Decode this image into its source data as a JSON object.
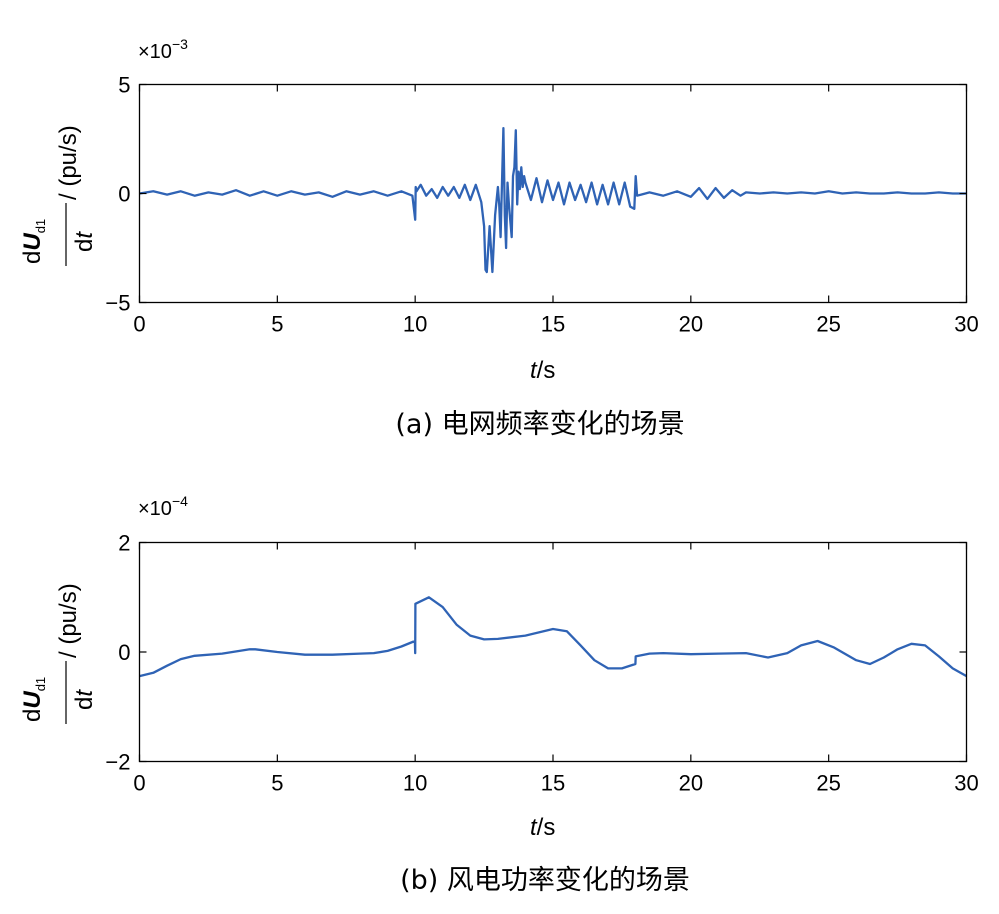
{
  "colors": {
    "series": "#2f63b5",
    "axis": "#000000"
  },
  "chart_data": [
    {
      "type": "line",
      "caption": "(a) 电网频率变化的场景",
      "xlabel_italic": "t",
      "xlabel_unit": "/s",
      "ylabel": {
        "d_top": "d",
        "U": "U",
        "sub": "d1",
        "d_bottom": "d",
        "t": "t",
        "unit": "/ (pu/s)"
      },
      "exponent": {
        "prefix": "×10",
        "power": "−3"
      },
      "xlim": [
        0,
        30
      ],
      "ylim": [
        -5,
        5
      ],
      "xticks": [
        0,
        5,
        10,
        15,
        20,
        25,
        30
      ],
      "xtick_labels": [
        "0",
        "5",
        "10",
        "15",
        "20",
        "25",
        "30"
      ],
      "yticks": [
        -5,
        0,
        5
      ],
      "ytick_labels": [
        "−5",
        "0",
        "5"
      ],
      "series": [
        {
          "values_note": "dUd1/dt ×10^-3",
          "x": [
            0,
            0.5,
            1,
            1.5,
            2,
            2.5,
            3,
            3.5,
            4,
            4.5,
            5,
            5.5,
            6,
            6.5,
            7,
            7.5,
            8,
            8.5,
            9,
            9.5,
            9.9,
            10.0,
            10.02,
            10.05,
            10.2,
            10.4,
            10.6,
            10.8,
            11.0,
            11.2,
            11.4,
            11.6,
            11.8,
            12.0,
            12.2,
            12.4,
            12.5,
            12.55,
            12.6,
            12.7,
            12.8,
            12.9,
            13.0,
            13.05,
            13.1,
            13.15,
            13.2,
            13.25,
            13.3,
            13.35,
            13.4,
            13.5,
            13.55,
            13.6,
            13.65,
            13.7,
            13.75,
            13.8,
            13.85,
            13.9,
            13.95,
            14.0,
            14.2,
            14.4,
            14.6,
            14.8,
            15.0,
            15.2,
            15.4,
            15.6,
            15.8,
            16.0,
            16.2,
            16.4,
            16.6,
            16.8,
            17.0,
            17.2,
            17.4,
            17.6,
            17.8,
            17.95,
            18.0,
            18.05,
            18.2,
            18.5,
            19.0,
            19.5,
            20.0,
            20.3,
            20.6,
            20.9,
            21.2,
            21.5,
            21.8,
            22.0,
            22.5,
            23,
            23.5,
            24,
            24.5,
            25,
            25.5,
            26,
            26.5,
            27,
            27.5,
            28,
            28.5,
            29,
            29.5,
            30
          ],
          "y": [
            0.0,
            0.1,
            -0.05,
            0.1,
            -0.1,
            0.05,
            -0.05,
            0.15,
            -0.1,
            0.1,
            -0.1,
            0.1,
            -0.05,
            0.05,
            -0.15,
            0.1,
            -0.05,
            0.1,
            -0.1,
            0.1,
            -0.1,
            -1.2,
            0.3,
            0.1,
            0.4,
            -0.1,
            0.2,
            -0.2,
            0.3,
            -0.1,
            0.3,
            -0.2,
            0.4,
            -0.3,
            0.4,
            -0.4,
            -1.5,
            -3.5,
            -3.6,
            -1.5,
            -3.6,
            -1.0,
            0.3,
            -0.5,
            -2.0,
            0.5,
            3.0,
            -1.0,
            -2.5,
            0.5,
            -0.5,
            -2.0,
            0.8,
            1.2,
            2.9,
            -0.5,
            1.0,
            0.2,
            1.2,
            0.3,
            0.8,
            0.5,
            -0.3,
            0.7,
            -0.4,
            0.6,
            -0.3,
            0.5,
            -0.5,
            0.5,
            -0.3,
            0.4,
            -0.4,
            0.5,
            -0.5,
            0.4,
            -0.5,
            0.5,
            -0.5,
            0.5,
            -0.6,
            -0.7,
            0.8,
            -0.1,
            -0.05,
            0.05,
            -0.1,
            0.1,
            -0.15,
            0.25,
            -0.25,
            0.25,
            -0.2,
            0.15,
            -0.1,
            0.05,
            0.0,
            0.05,
            0.0,
            0.05,
            0.0,
            0.1,
            0.0,
            0.05,
            0.0,
            0.0,
            0.05,
            0.0,
            0.0,
            0.05,
            0.0,
            0.0
          ]
        }
      ]
    },
    {
      "type": "line",
      "caption": "(b) 风电功率变化的场景",
      "xlabel_italic": "t",
      "xlabel_unit": "/s",
      "ylabel": {
        "d_top": "d",
        "U": "U",
        "sub": "d1",
        "d_bottom": "d",
        "t": "t",
        "unit": "/ (pu/s)"
      },
      "exponent": {
        "prefix": "×10",
        "power": "−4"
      },
      "xlim": [
        0,
        30
      ],
      "ylim": [
        -2,
        2
      ],
      "xticks": [
        0,
        5,
        10,
        15,
        20,
        25,
        30
      ],
      "xtick_labels": [
        "0",
        "5",
        "10",
        "15",
        "20",
        "25",
        "30"
      ],
      "yticks": [
        -2,
        0,
        2
      ],
      "ytick_labels": [
        "−2",
        "0",
        "2"
      ],
      "series": [
        {
          "values_note": "dUd1/dt ×10^-4",
          "x": [
            0,
            0.5,
            1,
            1.5,
            2,
            3,
            4,
            4.2,
            5,
            6,
            7,
            8,
            8.5,
            9,
            9.5,
            9.99,
            10.0,
            10.01,
            10.5,
            11,
            11.5,
            12,
            12.5,
            13,
            14,
            15,
            15.5,
            16,
            16.5,
            17,
            17.5,
            17.99,
            18.0,
            18.5,
            19,
            20,
            21,
            22,
            22.8,
            23.5,
            24,
            24.6,
            25.2,
            26,
            26.5,
            27,
            27.5,
            28,
            28.5,
            29,
            29.5,
            30
          ],
          "y": [
            -0.44,
            -0.38,
            -0.25,
            -0.13,
            -0.07,
            -0.03,
            0.05,
            0.05,
            0.0,
            -0.05,
            -0.05,
            -0.03,
            -0.02,
            0.02,
            0.1,
            0.2,
            -0.02,
            0.88,
            1.0,
            0.82,
            0.5,
            0.3,
            0.23,
            0.24,
            0.3,
            0.42,
            0.38,
            0.12,
            -0.15,
            -0.3,
            -0.3,
            -0.22,
            -0.08,
            -0.03,
            -0.02,
            -0.04,
            -0.03,
            -0.02,
            -0.1,
            -0.02,
            0.12,
            0.2,
            0.08,
            -0.15,
            -0.22,
            -0.1,
            0.05,
            0.15,
            0.12,
            -0.08,
            -0.3,
            -0.44
          ]
        }
      ]
    }
  ]
}
